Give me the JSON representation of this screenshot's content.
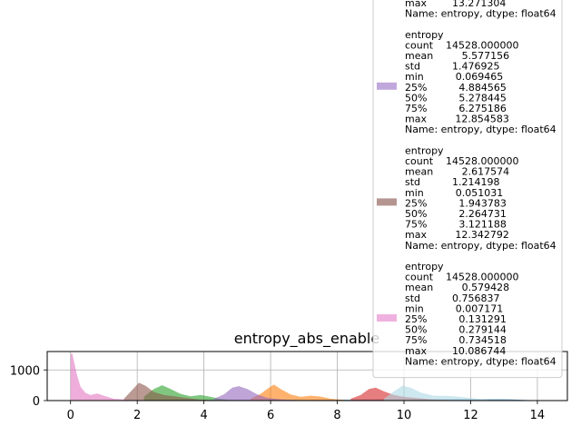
{
  "chart_data": {
    "type": "histogram",
    "title": "entropy_abs_enable",
    "xlabel": "",
    "ylabel": "",
    "xlim": [
      -0.7,
      14.9
    ],
    "ylim": [
      0,
      1600
    ],
    "x_ticks": [
      "0",
      "2",
      "4",
      "6",
      "8",
      "10",
      "12",
      "14"
    ],
    "x_tick_values": [
      0,
      2,
      4,
      6,
      8,
      10,
      12,
      14
    ],
    "y_ticks": [
      "0",
      "1000"
    ],
    "y_tick_values": [
      0,
      1000
    ],
    "grid": true,
    "legend_position": "top-right (overflowing above the axes)",
    "series": [
      {
        "color": "#1f77b4",
        "values": [
          [
            0.05,
            5
          ],
          [
            0.85,
            12
          ],
          [
            12.3,
            40
          ],
          [
            12.8,
            45
          ],
          [
            13.2,
            40
          ],
          [
            13.6,
            25
          ],
          [
            14.0,
            8
          ],
          [
            14.4,
            2
          ]
        ]
      },
      {
        "color": "#ff7f0e",
        "values": [
          [
            5.4,
            60
          ],
          [
            5.7,
            220
          ],
          [
            5.95,
            420
          ],
          [
            6.1,
            520
          ],
          [
            6.3,
            380
          ],
          [
            6.6,
            200
          ],
          [
            6.9,
            120
          ],
          [
            7.2,
            160
          ],
          [
            7.5,
            130
          ],
          [
            7.8,
            60
          ],
          [
            8.2,
            20
          ]
        ]
      },
      {
        "color": "#2ca02c",
        "values": [
          [
            2.2,
            120
          ],
          [
            2.5,
            380
          ],
          [
            2.75,
            500
          ],
          [
            3.0,
            380
          ],
          [
            3.3,
            220
          ],
          [
            3.6,
            140
          ],
          [
            3.9,
            180
          ],
          [
            4.2,
            120
          ],
          [
            4.5,
            50
          ],
          [
            4.9,
            10
          ]
        ]
      },
      {
        "color": "#d62728",
        "values": [
          [
            8.4,
            60
          ],
          [
            8.7,
            180
          ],
          [
            8.95,
            380
          ],
          [
            9.15,
            420
          ],
          [
            9.4,
            300
          ],
          [
            9.7,
            180
          ],
          [
            10.0,
            120
          ],
          [
            10.4,
            80
          ],
          [
            10.8,
            40
          ],
          [
            11.4,
            15
          ]
        ]
      },
      {
        "color": "#add8e6",
        "values": [
          [
            9.4,
            60
          ],
          [
            9.7,
            300
          ],
          [
            9.95,
            480
          ],
          [
            10.2,
            420
          ],
          [
            10.5,
            260
          ],
          [
            10.9,
            160
          ],
          [
            11.3,
            150
          ],
          [
            11.7,
            120
          ],
          [
            12.1,
            70
          ],
          [
            12.5,
            20
          ]
        ]
      },
      {
        "color": "#9467bd",
        "values": [
          [
            4.3,
            60
          ],
          [
            4.6,
            200
          ],
          [
            4.85,
            420
          ],
          [
            5.05,
            470
          ],
          [
            5.3,
            380
          ],
          [
            5.6,
            200
          ],
          [
            5.9,
            90
          ],
          [
            6.3,
            40
          ],
          [
            6.8,
            15
          ]
        ]
      },
      {
        "color": "#8c564b",
        "values": [
          [
            1.6,
            60
          ],
          [
            1.85,
            350
          ],
          [
            2.05,
            580
          ],
          [
            2.25,
            480
          ],
          [
            2.5,
            280
          ],
          [
            2.8,
            180
          ],
          [
            3.1,
            140
          ],
          [
            3.5,
            80
          ],
          [
            3.9,
            30
          ],
          [
            4.5,
            10
          ]
        ]
      },
      {
        "color": "#e377c2",
        "values": [
          [
            0.007,
            1500
          ],
          [
            0.05,
            1550
          ],
          [
            0.12,
            1200
          ],
          [
            0.2,
            800
          ],
          [
            0.3,
            450
          ],
          [
            0.45,
            250
          ],
          [
            0.6,
            180
          ],
          [
            0.8,
            230
          ],
          [
            1.0,
            160
          ],
          [
            1.3,
            60
          ],
          [
            1.8,
            25
          ],
          [
            2.5,
            10
          ]
        ]
      }
    ],
    "legend": {
      "blocks": [
        {
          "swatch": "",
          "lines": [
            "max        13.271304",
            "Name: entropy, dtype: float64"
          ]
        },
        {
          "swatch": "#c0a8dc",
          "lines": [
            "entropy",
            "count    14528.000000",
            "mean         5.577156",
            "std          1.476925",
            "min          0.069465",
            "25%          4.884565",
            "50%          5.278445",
            "75%          6.275186",
            "max         12.854583",
            "Name: entropy, dtype: float64"
          ]
        },
        {
          "swatch": "#b59590",
          "lines": [
            "entropy",
            "count    14528.000000",
            "mean         2.617574",
            "std          1.214198",
            "min          0.051031",
            "25%          1.943783",
            "50%          2.264731",
            "75%          3.121188",
            "max         12.342792",
            "Name: entropy, dtype: float64"
          ]
        },
        {
          "swatch": "#efb2e0",
          "lines": [
            "entropy",
            "count    14528.000000",
            "mean         0.579428",
            "std          0.756837",
            "min          0.007171",
            "25%          0.131291",
            "50%          0.279144",
            "75%          0.734518",
            "max        10.086744",
            "Name: entropy, dtype: float64"
          ]
        }
      ]
    }
  }
}
